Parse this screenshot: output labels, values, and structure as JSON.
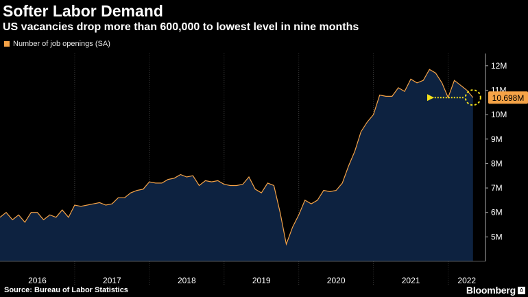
{
  "title": "Softer Labor Demand",
  "subtitle": "US vacancies drop more than 600,000 to lowest level in nine months",
  "source": "Source: Bureau of Labor Statistics",
  "brand": "Bloomberg",
  "brand_mark": "Δ",
  "colors": {
    "background": "#000000",
    "line": "#f5a347",
    "area": "#0d2240",
    "grid": "#3a3a3a",
    "callout": "#f5e11a"
  },
  "chart_data": {
    "type": "area",
    "legend": [
      "Number of job openings (SA)"
    ],
    "legend_position": "top-left",
    "y_axis_position": "right",
    "ylim": [
      4.0,
      12.5
    ],
    "y_ticks": [
      5,
      6,
      7,
      8,
      9,
      10,
      11,
      12
    ],
    "y_tick_labels": [
      "5M",
      "6M",
      "7M",
      "8M",
      "9M",
      "10M",
      "11M",
      "12M"
    ],
    "xlim": [
      2016.0,
      2022.5
    ],
    "x_ticks": [
      2016,
      2017,
      2018,
      2019,
      2020,
      2021,
      2022
    ],
    "x_tick_labels": [
      "2016",
      "2017",
      "2018",
      "2019",
      "2020",
      "2021",
      "2022"
    ],
    "grid": "vertical dotted at year boundaries",
    "series": [
      {
        "name": "Number of job openings (SA)",
        "x": [
          2016.0,
          2016.083,
          2016.167,
          2016.25,
          2016.333,
          2016.417,
          2016.5,
          2016.583,
          2016.667,
          2016.75,
          2016.833,
          2016.917,
          2017.0,
          2017.083,
          2017.167,
          2017.25,
          2017.333,
          2017.417,
          2017.5,
          2017.583,
          2017.667,
          2017.75,
          2017.833,
          2017.917,
          2018.0,
          2018.083,
          2018.167,
          2018.25,
          2018.333,
          2018.417,
          2018.5,
          2018.583,
          2018.667,
          2018.75,
          2018.833,
          2018.917,
          2019.0,
          2019.083,
          2019.167,
          2019.25,
          2019.333,
          2019.417,
          2019.5,
          2019.583,
          2019.667,
          2019.75,
          2019.833,
          2019.917,
          2020.0,
          2020.083,
          2020.167,
          2020.25,
          2020.333,
          2020.417,
          2020.5,
          2020.583,
          2020.667,
          2020.75,
          2020.833,
          2020.917,
          2021.0,
          2021.083,
          2021.167,
          2021.25,
          2021.333,
          2021.417,
          2021.5,
          2021.583,
          2021.667,
          2021.75,
          2021.833,
          2021.917,
          2022.0,
          2022.083,
          2022.167,
          2022.25,
          2022.333
        ],
        "values": [
          5.8,
          6.0,
          5.7,
          5.9,
          5.6,
          6.0,
          6.0,
          5.7,
          5.9,
          5.8,
          6.1,
          5.8,
          6.3,
          6.25,
          6.3,
          6.35,
          6.4,
          6.3,
          6.35,
          6.6,
          6.6,
          6.8,
          6.9,
          6.95,
          7.25,
          7.2,
          7.2,
          7.35,
          7.4,
          7.55,
          7.45,
          7.5,
          7.1,
          7.3,
          7.25,
          7.3,
          7.15,
          7.1,
          7.1,
          7.15,
          7.45,
          6.95,
          6.8,
          7.2,
          7.1,
          6.0,
          4.7,
          5.4,
          5.9,
          6.5,
          6.35,
          6.5,
          6.9,
          6.85,
          6.9,
          7.2,
          7.9,
          8.5,
          9.3,
          9.7,
          10.0,
          10.8,
          10.75,
          10.75,
          11.1,
          10.95,
          11.45,
          11.3,
          11.4,
          11.85,
          11.7,
          11.3,
          10.698,
          11.4,
          11.2,
          11.0,
          10.698
        ]
      }
    ],
    "annotation": {
      "label": "10.698M",
      "value": 10.698,
      "x": 2022.333
    }
  }
}
